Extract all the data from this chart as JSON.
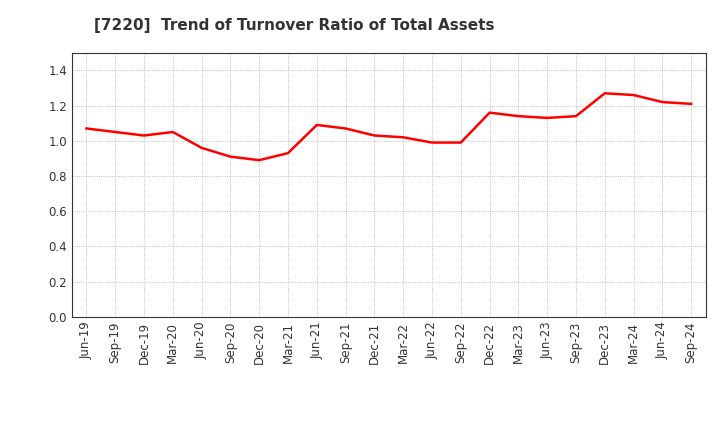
{
  "title": "[7220]  Trend of Turnover Ratio of Total Assets",
  "title_color": "#333333",
  "line_color": "#ff0000",
  "background_color": "#ffffff",
  "grid_color": "#999999",
  "ylim": [
    0.0,
    1.5
  ],
  "yticks": [
    0.0,
    0.2,
    0.4,
    0.6,
    0.8,
    1.0,
    1.2,
    1.4
  ],
  "x_labels": [
    "Jun-19",
    "Sep-19",
    "Dec-19",
    "Mar-20",
    "Jun-20",
    "Sep-20",
    "Dec-20",
    "Mar-21",
    "Jun-21",
    "Sep-21",
    "Dec-21",
    "Mar-22",
    "Jun-22",
    "Sep-22",
    "Dec-22",
    "Mar-23",
    "Jun-23",
    "Sep-23",
    "Dec-23",
    "Mar-24",
    "Jun-24",
    "Sep-24"
  ],
  "values": [
    1.07,
    1.05,
    1.03,
    1.05,
    0.96,
    0.91,
    0.89,
    0.93,
    1.09,
    1.07,
    1.03,
    1.02,
    0.99,
    0.99,
    1.16,
    1.14,
    1.13,
    1.14,
    1.27,
    1.26,
    1.22,
    1.21
  ],
  "tick_color": "#333333",
  "spine_color": "#333333",
  "title_fontsize": 11,
  "tick_fontsize": 8.5,
  "linewidth": 1.8
}
